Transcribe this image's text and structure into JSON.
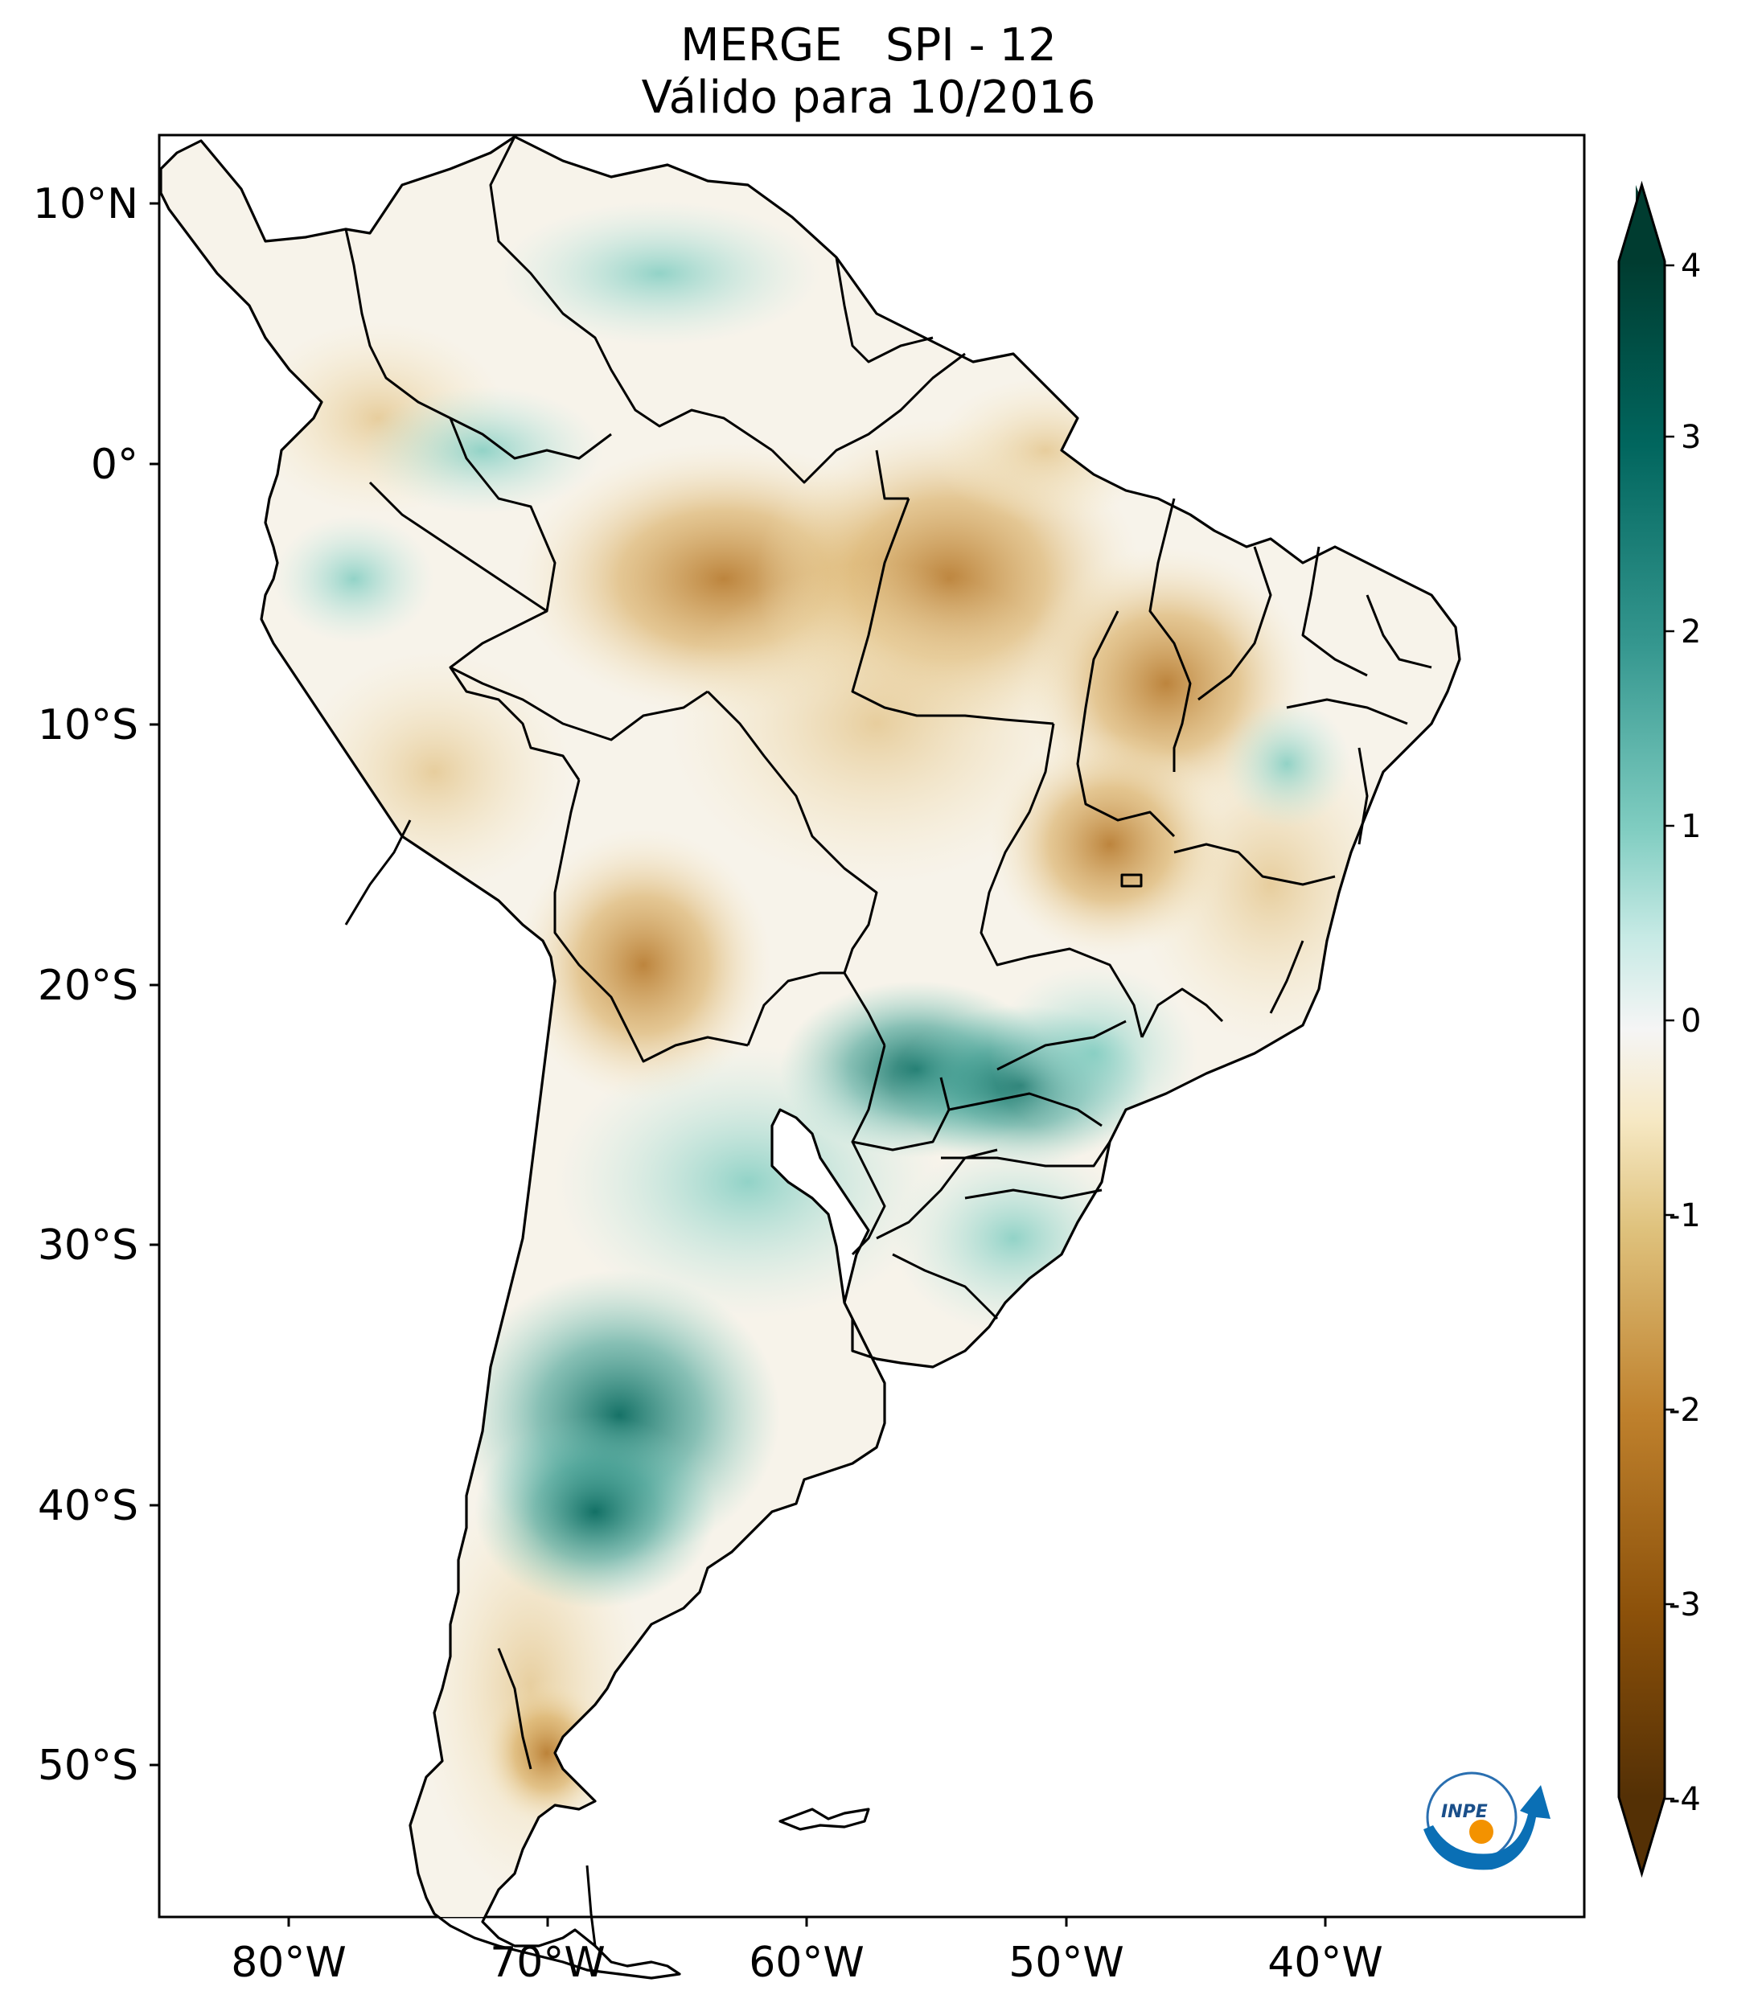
{
  "title": {
    "line1": "MERGE   SPI - 12",
    "line2": "Válido para 10/2016"
  },
  "map": {
    "lat_ticks": [
      "10°N",
      "0°",
      "10°S",
      "20°S",
      "30°S",
      "40°S",
      "50°S"
    ],
    "lon_ticks": [
      "80°W",
      "70°W",
      "60°W",
      "50°W",
      "40°W"
    ],
    "extent": {
      "lon": [
        -85,
        -30
      ],
      "lat": [
        -56,
        12.5
      ]
    }
  },
  "colorbar": {
    "ticks": [
      "4",
      "3",
      "2",
      "1",
      "0",
      "-1",
      "-2",
      "-3",
      "-4"
    ],
    "range": [
      -4,
      4
    ],
    "extend": "both",
    "colormap": "BrBG",
    "colors": {
      "very_wet": "#01443b",
      "wet": "#2f9a8d",
      "moist": "#b8e3dc",
      "neutral": "#f5f5f5",
      "dry": "#efdcaa",
      "drier": "#d2a055",
      "very_dry": "#573303"
    }
  },
  "logo": {
    "text": "INPE",
    "colors": {
      "arc": "#0a6fb5",
      "dot": "#f39200"
    }
  }
}
